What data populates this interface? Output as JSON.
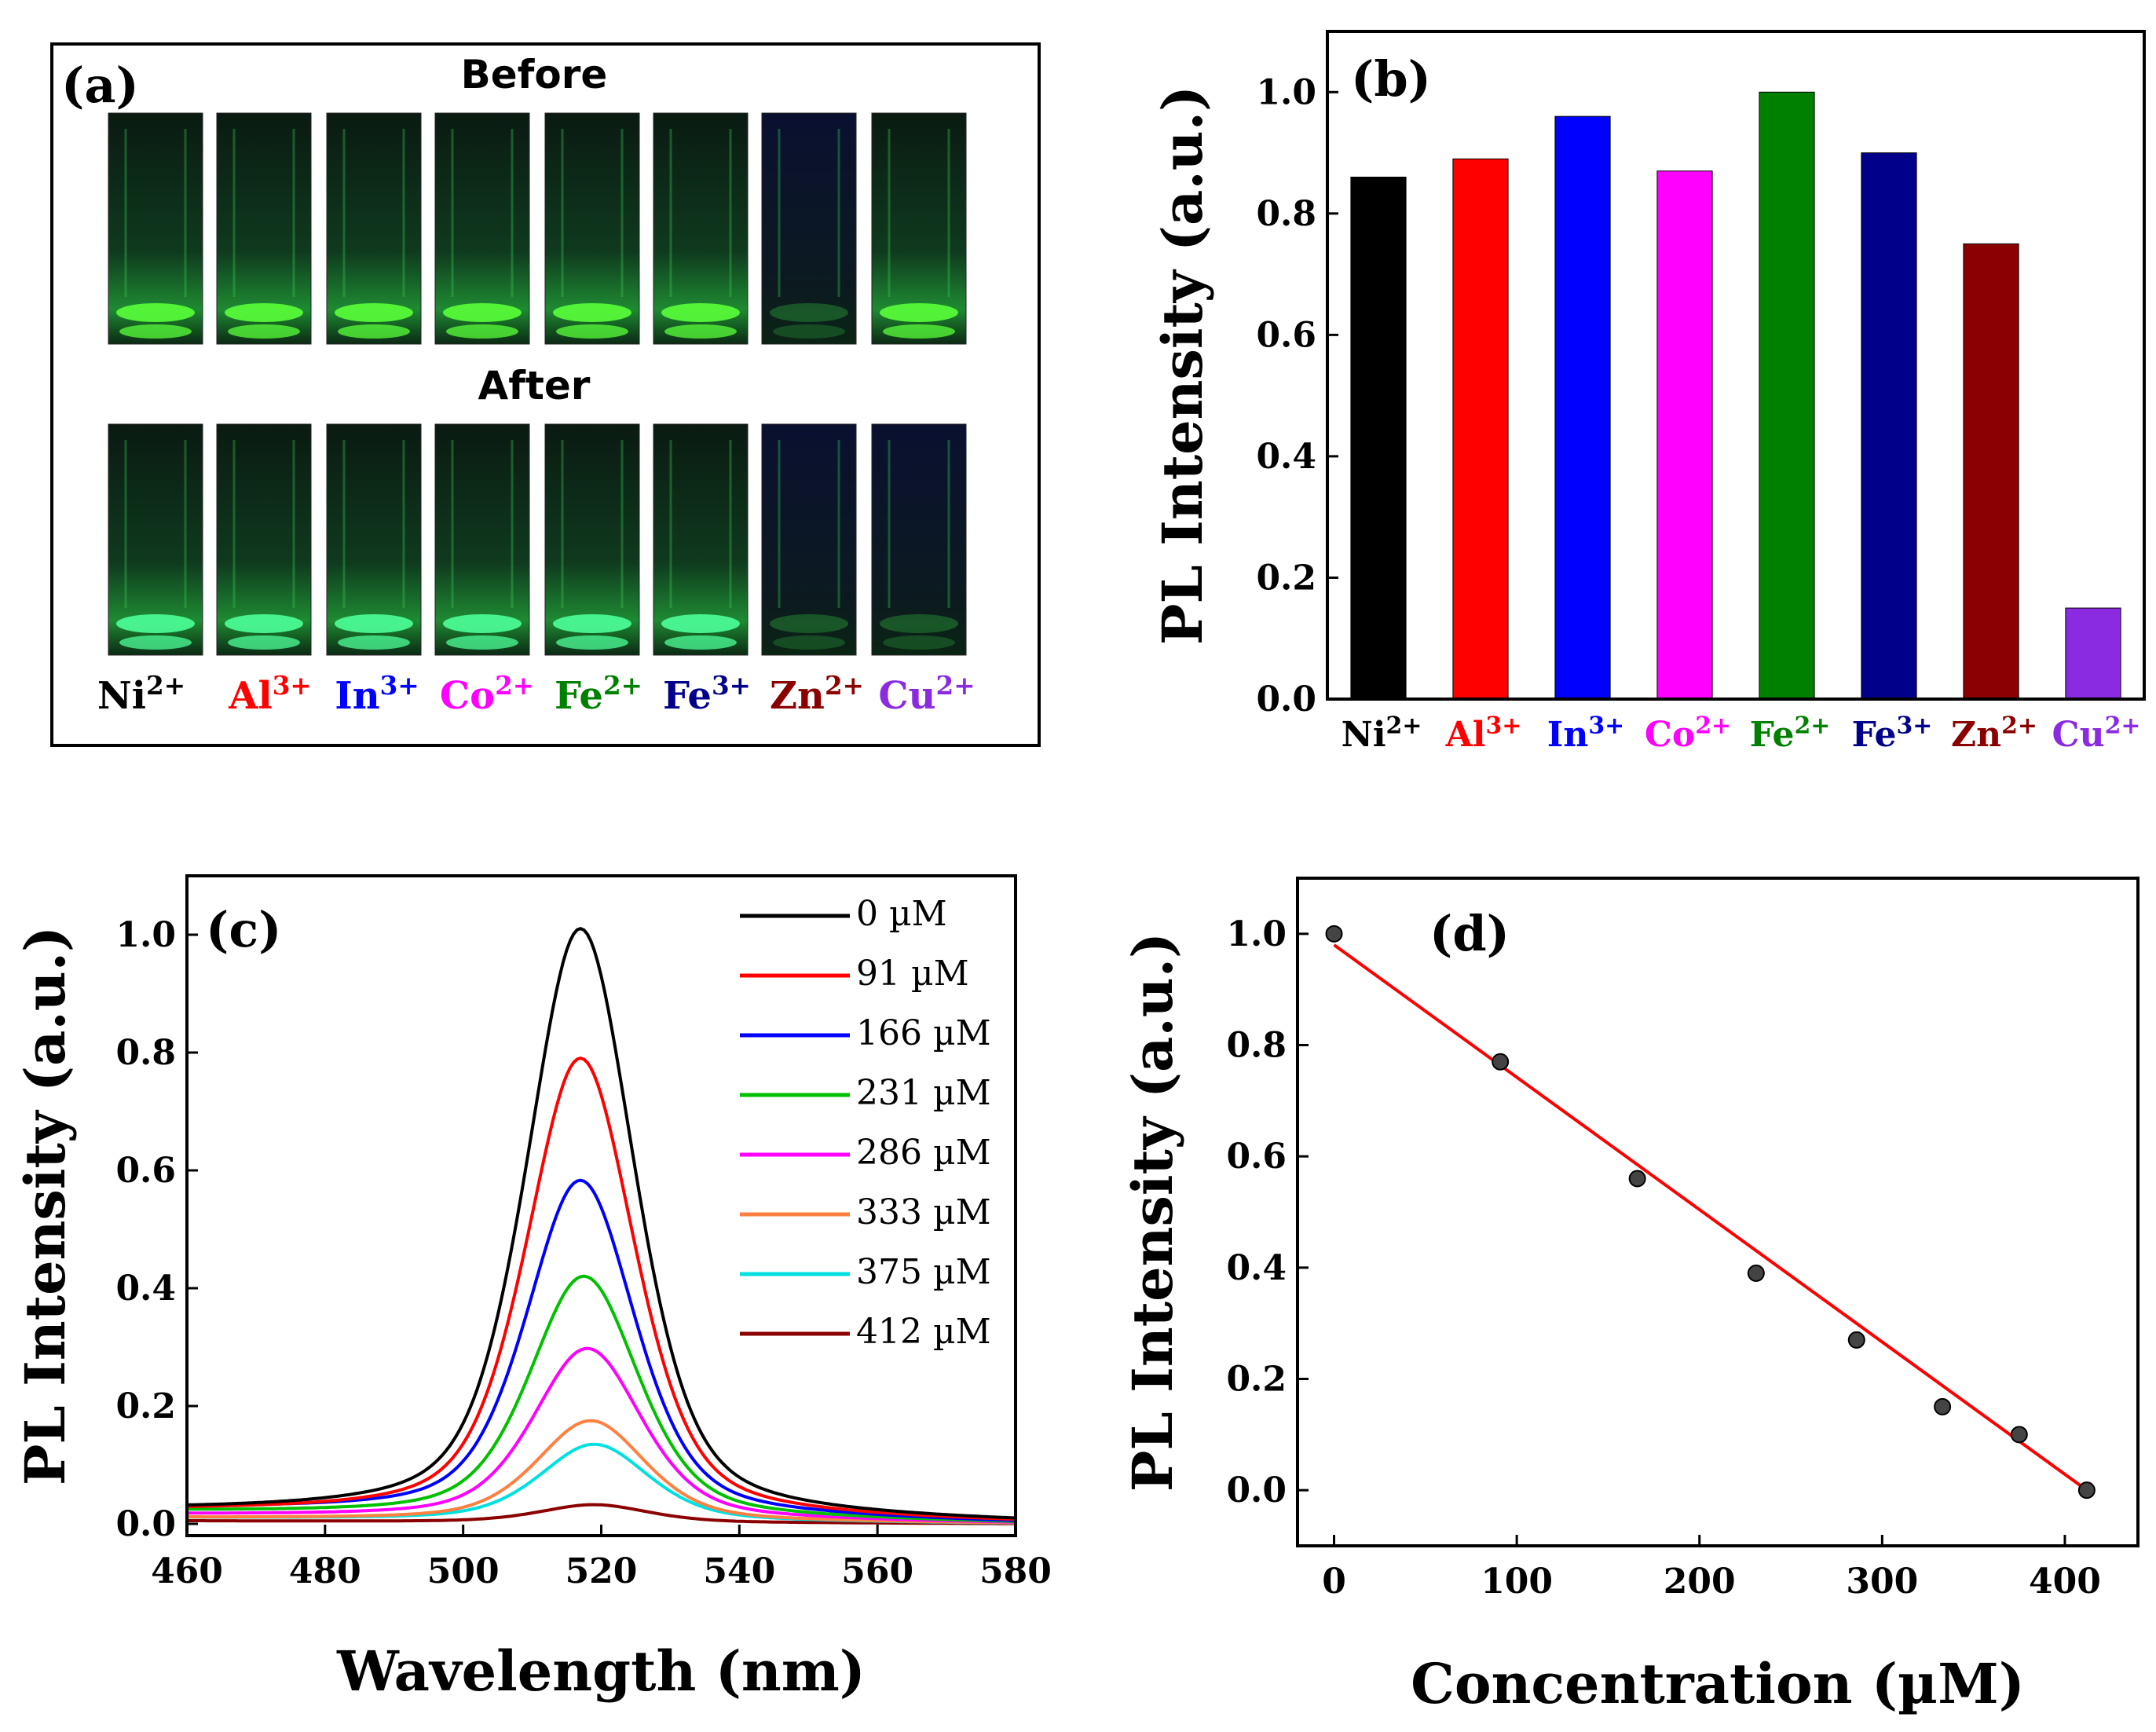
{
  "panel_a": {
    "label": "(a)",
    "before_label": "Before",
    "after_label": "After",
    "ions": [
      {
        "base": "Ni",
        "sup": "2+",
        "color": "#000000"
      },
      {
        "base": "Al",
        "sup": "3+",
        "color": "#ff0000"
      },
      {
        "base": "In",
        "sup": "3+",
        "color": "#0000ff"
      },
      {
        "base": "Co",
        "sup": "2+",
        "color": "#ff00ff"
      },
      {
        "base": "Fe",
        "sup": "2+",
        "color": "#008000"
      },
      {
        "base": "Fe",
        "sup": "3+",
        "color": "#00008b"
      },
      {
        "base": "Zn",
        "sup": "2+",
        "color": "#8b0000"
      },
      {
        "base": "Cu",
        "sup": "2+",
        "color": "#8a2be2"
      }
    ]
  },
  "chart_data": [
    {
      "panel": "(b)",
      "type": "bar",
      "title": "",
      "ylabel": "PL Intensity (a.u.)",
      "xlabel": "",
      "categories": [
        {
          "base": "Ni",
          "sup": "2+"
        },
        {
          "base": "Al",
          "sup": "3+"
        },
        {
          "base": "In",
          "sup": "3+"
        },
        {
          "base": "Co",
          "sup": "2+"
        },
        {
          "base": "Fe",
          "sup": "2+"
        },
        {
          "base": "Fe",
          "sup": "3+"
        },
        {
          "base": "Zn",
          "sup": "2+"
        },
        {
          "base": "Cu",
          "sup": "2+"
        }
      ],
      "values": [
        0.86,
        0.89,
        0.96,
        0.87,
        1.0,
        0.9,
        0.75,
        0.15
      ],
      "colors": [
        "#000000",
        "#ff0000",
        "#0000ff",
        "#ff00ff",
        "#008000",
        "#00008b",
        "#8b0000",
        "#8a2be2"
      ],
      "ylim": [
        0,
        1.1
      ],
      "yticks": [
        0.0,
        0.2,
        0.4,
        0.6,
        0.8,
        1.0
      ]
    },
    {
      "panel": "(c)",
      "type": "line",
      "xlabel": "Wavelength (nm)",
      "ylabel": "PL Intensity (a.u.)",
      "xlim": [
        460,
        580
      ],
      "ylim": [
        -0.02,
        1.1
      ],
      "xticks": [
        460,
        480,
        500,
        520,
        540,
        560,
        580
      ],
      "yticks": [
        0.0,
        0.2,
        0.4,
        0.6,
        0.8,
        1.0
      ],
      "legend": "top-right",
      "series": [
        {
          "name": "0 µM",
          "color": "#000000",
          "peak_x": 517,
          "peak_y": 1.0,
          "baseline_left": 0.02,
          "baseline_right": 0.0
        },
        {
          "name": "91 µM",
          "color": "#ff0000",
          "peak_x": 517,
          "peak_y": 0.78,
          "baseline_left": 0.02,
          "baseline_right": 0.0
        },
        {
          "name": "166 µM",
          "color": "#0000ff",
          "peak_x": 517,
          "peak_y": 0.57,
          "baseline_left": 0.025,
          "baseline_right": 0.0
        },
        {
          "name": "231 µM",
          "color": "#00c000",
          "peak_x": 517.5,
          "peak_y": 0.41,
          "baseline_left": 0.02,
          "baseline_right": 0.0
        },
        {
          "name": "286 µM",
          "color": "#ff00ff",
          "peak_x": 518,
          "peak_y": 0.29,
          "baseline_left": 0.015,
          "baseline_right": 0.0
        },
        {
          "name": "333 µM",
          "color": "#ff8040",
          "peak_x": 518.5,
          "peak_y": 0.17,
          "baseline_left": 0.01,
          "baseline_right": 0.0
        },
        {
          "name": "375 µM",
          "color": "#00e0e0",
          "peak_x": 519,
          "peak_y": 0.13,
          "baseline_left": 0.01,
          "baseline_right": 0.0
        },
        {
          "name": "412 µM",
          "color": "#8b0000",
          "peak_x": 519,
          "peak_y": 0.03,
          "baseline_left": 0.005,
          "baseline_right": 0.0
        }
      ]
    },
    {
      "panel": "(d)",
      "type": "scatter",
      "xlabel": "Concentration (µM)",
      "ylabel": "PL Intensity (a.u.)",
      "xlim": [
        -20,
        440
      ],
      "ylim": [
        -0.1,
        1.1
      ],
      "xticks": [
        0,
        100,
        200,
        300,
        400
      ],
      "yticks": [
        0.0,
        0.2,
        0.4,
        0.6,
        0.8,
        1.0
      ],
      "x": [
        0,
        91,
        166,
        231,
        286,
        333,
        375,
        412
      ],
      "y": [
        1.0,
        0.77,
        0.56,
        0.39,
        0.27,
        0.15,
        0.1,
        0.0
      ],
      "fit": {
        "color": "#ff0000",
        "x": [
          0,
          412
        ],
        "y": [
          0.98,
          -0.0
        ]
      }
    }
  ]
}
